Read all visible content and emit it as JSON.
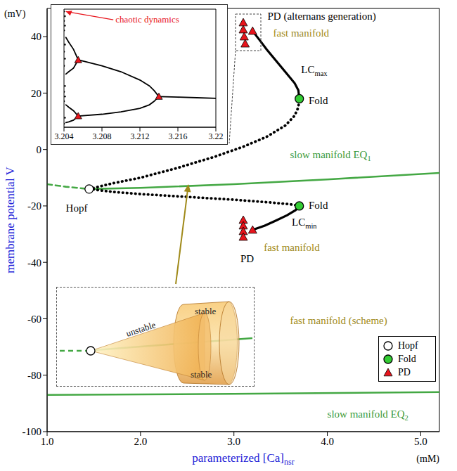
{
  "chart_data": [
    {
      "type": "line",
      "x_label": "parameterized [Ca]",
      "x_label_sub": "nsr",
      "x_unit": "(mM)",
      "y_label": "membrane potential V",
      "y_unit": "(mV)",
      "xlim": [
        1.0,
        5.2
      ],
      "xticks": [
        {
          "value": 1,
          "label": "1.0"
        },
        {
          "value": 2,
          "label": "2.0"
        },
        {
          "value": 3,
          "label": "3.0"
        },
        {
          "value": 4,
          "label": "4.0"
        },
        {
          "value": 5,
          "label": "5.0"
        }
      ],
      "ylim": [
        -100,
        50
      ],
      "yticks": [
        -100,
        -80,
        -60,
        -40,
        -20,
        0,
        20,
        40
      ],
      "grid": false,
      "legend": "lower right",
      "series": [
        {
          "color": "#44a844",
          "line_style": "dashed",
          "points": [
            [
              1.0,
              -12.3
            ],
            [
              1.2,
              -13.2
            ],
            [
              1.45,
              -14
            ]
          ]
        },
        {
          "color": "#44a844",
          "line_style": "solid",
          "points": [
            [
              1.45,
              -14
            ],
            [
              2.0,
              -13.6
            ],
            [
              3.0,
              -12.3
            ],
            [
              4.0,
              -10.6
            ],
            [
              5.2,
              -8.3
            ]
          ]
        },
        {
          "color": "#44a844",
          "line_style": "solid",
          "points": [
            [
              1.0,
              -87
            ],
            [
              3.0,
              -86.6
            ],
            [
              5.2,
              -86
            ]
          ]
        },
        {
          "color": "#000000",
          "line_style": "dotted",
          "points": [
            [
              1.45,
              -14
            ],
            [
              1.7,
              -12
            ],
            [
              2.0,
              -10
            ],
            [
              2.4,
              -6.5
            ],
            [
              2.8,
              -2.5
            ],
            [
              3.1,
              1
            ],
            [
              3.35,
              4.5
            ],
            [
              3.55,
              8.5
            ],
            [
              3.65,
              12
            ],
            [
              3.69,
              15
            ],
            [
              3.7,
              18
            ]
          ]
        },
        {
          "color": "#000000",
          "line_style": "solid",
          "points": [
            [
              3.7,
              18
            ],
            [
              3.69,
              21
            ],
            [
              3.65,
              23.5
            ],
            [
              3.55,
              27.5
            ],
            [
              3.45,
              31.5
            ],
            [
              3.35,
              35.5
            ],
            [
              3.27,
              39
            ],
            [
              3.2,
              42
            ]
          ]
        },
        {
          "color": "#000000",
          "line_style": "dotted",
          "points": [
            [
              1.45,
              -14
            ],
            [
              1.7,
              -15
            ],
            [
              2.0,
              -15.8
            ],
            [
              2.5,
              -16.8
            ],
            [
              3.0,
              -17.8
            ],
            [
              3.4,
              -18.8
            ],
            [
              3.6,
              -19.4
            ],
            [
              3.7,
              -20
            ]
          ]
        },
        {
          "color": "#000000",
          "line_style": "solid",
          "points": [
            [
              3.7,
              -20
            ],
            [
              3.66,
              -21.5
            ],
            [
              3.57,
              -23.3
            ],
            [
              3.45,
              -25.2
            ],
            [
              3.33,
              -27
            ],
            [
              3.2,
              -28.5
            ]
          ]
        }
      ],
      "markers": [
        {
          "name": "Hopf",
          "marker": "circle",
          "color": "#ffffff",
          "points": [
            [
              1.45,
              -14
            ]
          ]
        },
        {
          "name": "Fold",
          "marker": "circle",
          "color": "#33cc33",
          "points": [
            [
              3.7,
              18
            ],
            [
              3.7,
              -20
            ]
          ]
        },
        {
          "name": "PD",
          "marker": "triangle",
          "color": "#e8141c",
          "points": [
            [
              3.2,
              42
            ],
            [
              3.1,
              45
            ],
            [
              3.1,
              42.5
            ],
            [
              3.11,
              40
            ],
            [
              3.12,
              37.5
            ],
            [
              3.2,
              -28.5
            ],
            [
              3.1,
              -25
            ],
            [
              3.1,
              -27
            ],
            [
              3.1,
              -29
            ],
            [
              3.1,
              -31
            ]
          ]
        }
      ],
      "annotations": [
        {
          "text": "PD (alternans generation)",
          "x": 3.36,
          "y": 46,
          "color": "#000000"
        },
        {
          "text": "fast manifold",
          "x": 3.42,
          "y": 40,
          "color": "#a08a1a"
        },
        {
          "text": "LC",
          "sub": "max",
          "x": 3.72,
          "y": 27,
          "color": "#000000"
        },
        {
          "text": "Fold",
          "x": 3.8,
          "y": 16,
          "color": "#000000"
        },
        {
          "text": "slow manifold EQ",
          "sub": "1",
          "x": 3.6,
          "y": -3,
          "color": "#3a9a3a"
        },
        {
          "text": "Hopf",
          "x": 1.2,
          "y": -22,
          "color": "#000000"
        },
        {
          "text": "Fold",
          "x": 3.8,
          "y": -21,
          "color": "#000000"
        },
        {
          "text": "LC",
          "sub": "min",
          "x": 3.62,
          "y": -27,
          "color": "#000000"
        },
        {
          "text": "fast manifold",
          "x": 3.32,
          "y": -36,
          "color": "#a08a1a"
        },
        {
          "text": "PD",
          "x": 3.07,
          "y": -40,
          "color": "#000000"
        },
        {
          "text": "fast manifold (scheme)",
          "x": 3.6,
          "y": -62,
          "color": "#a08a1a"
        },
        {
          "text": "slow manifold EQ",
          "sub": "2",
          "x": 4.0,
          "y": -95,
          "color": "#3a9a3a"
        }
      ]
    },
    {
      "type": "line",
      "xlim": [
        3.204,
        3.22
      ],
      "xticks": [
        3.204,
        3.208,
        3.212,
        3.216,
        3.22
      ],
      "ylim": [
        0,
        100
      ],
      "tick_labels": "x",
      "series": [
        {
          "color": "#000000",
          "line_style": "solid",
          "points": [
            [
              3.214,
              26
            ],
            [
              3.216,
              25.5
            ],
            [
              3.218,
              25
            ],
            [
              3.22,
              24.5
            ]
          ]
        },
        {
          "color": "#000000",
          "line_style": "solid",
          "points": [
            [
              3.214,
              26
            ],
            [
              3.2135,
              31
            ],
            [
              3.213,
              35
            ],
            [
              3.212,
              40
            ],
            [
              3.21,
              47
            ],
            [
              3.208,
              52
            ],
            [
              3.2055,
              57
            ]
          ]
        },
        {
          "color": "#000000",
          "line_style": "solid",
          "points": [
            [
              3.214,
              26
            ],
            [
              3.2135,
              22
            ],
            [
              3.213,
              19
            ],
            [
              3.212,
              16
            ],
            [
              3.21,
              13
            ],
            [
              3.208,
              11
            ],
            [
              3.2055,
              9.5
            ]
          ]
        },
        {
          "color": "#000000",
          "line_style": "solid",
          "points": [
            [
              3.2055,
              57
            ],
            [
              3.205,
              66
            ],
            [
              3.2045,
              72
            ],
            [
              3.2042,
              76
            ]
          ]
        },
        {
          "color": "#000000",
          "line_style": "solid",
          "points": [
            [
              3.2055,
              57
            ],
            [
              3.205,
              50
            ],
            [
              3.2045,
              47
            ],
            [
              3.2042,
              45
            ]
          ]
        },
        {
          "color": "#000000",
          "line_style": "solid",
          "points": [
            [
              3.2055,
              9.5
            ],
            [
              3.205,
              14
            ],
            [
              3.2045,
              17
            ],
            [
              3.2042,
              19
            ]
          ]
        },
        {
          "color": "#000000",
          "line_style": "solid",
          "points": [
            [
              3.2055,
              9.5
            ],
            [
              3.205,
              6
            ],
            [
              3.2045,
              4.5
            ],
            [
              3.2042,
              4
            ]
          ]
        }
      ],
      "scatter": {
        "color": "#000000",
        "points": [
          [
            3.204,
            98
          ],
          [
            3.2041,
            94
          ],
          [
            3.204,
            90
          ],
          [
            3.2041,
            86
          ],
          [
            3.204,
            82
          ],
          [
            3.2041,
            70
          ],
          [
            3.204,
            64
          ],
          [
            3.2041,
            58
          ],
          [
            3.204,
            52
          ],
          [
            3.2041,
            35
          ],
          [
            3.204,
            30
          ],
          [
            3.2041,
            26
          ],
          [
            3.204,
            22
          ],
          [
            3.2041,
            8
          ],
          [
            3.204,
            3
          ]
        ]
      },
      "markers": [
        {
          "marker": "triangle",
          "color": "#e8141c",
          "points": [
            [
              3.214,
              26
            ],
            [
              3.2055,
              57
            ],
            [
              3.2055,
              9.5
            ]
          ]
        }
      ],
      "annotations": [
        {
          "text": "chaotic dynamics",
          "x": 3.2092,
          "y": 91,
          "color": "#e8141c",
          "arrow_to": [
            3.2042,
            98
          ]
        }
      ]
    }
  ],
  "scheme": {
    "cone": "unstable",
    "tube_top": "stable",
    "tube_bottom": "stable"
  }
}
